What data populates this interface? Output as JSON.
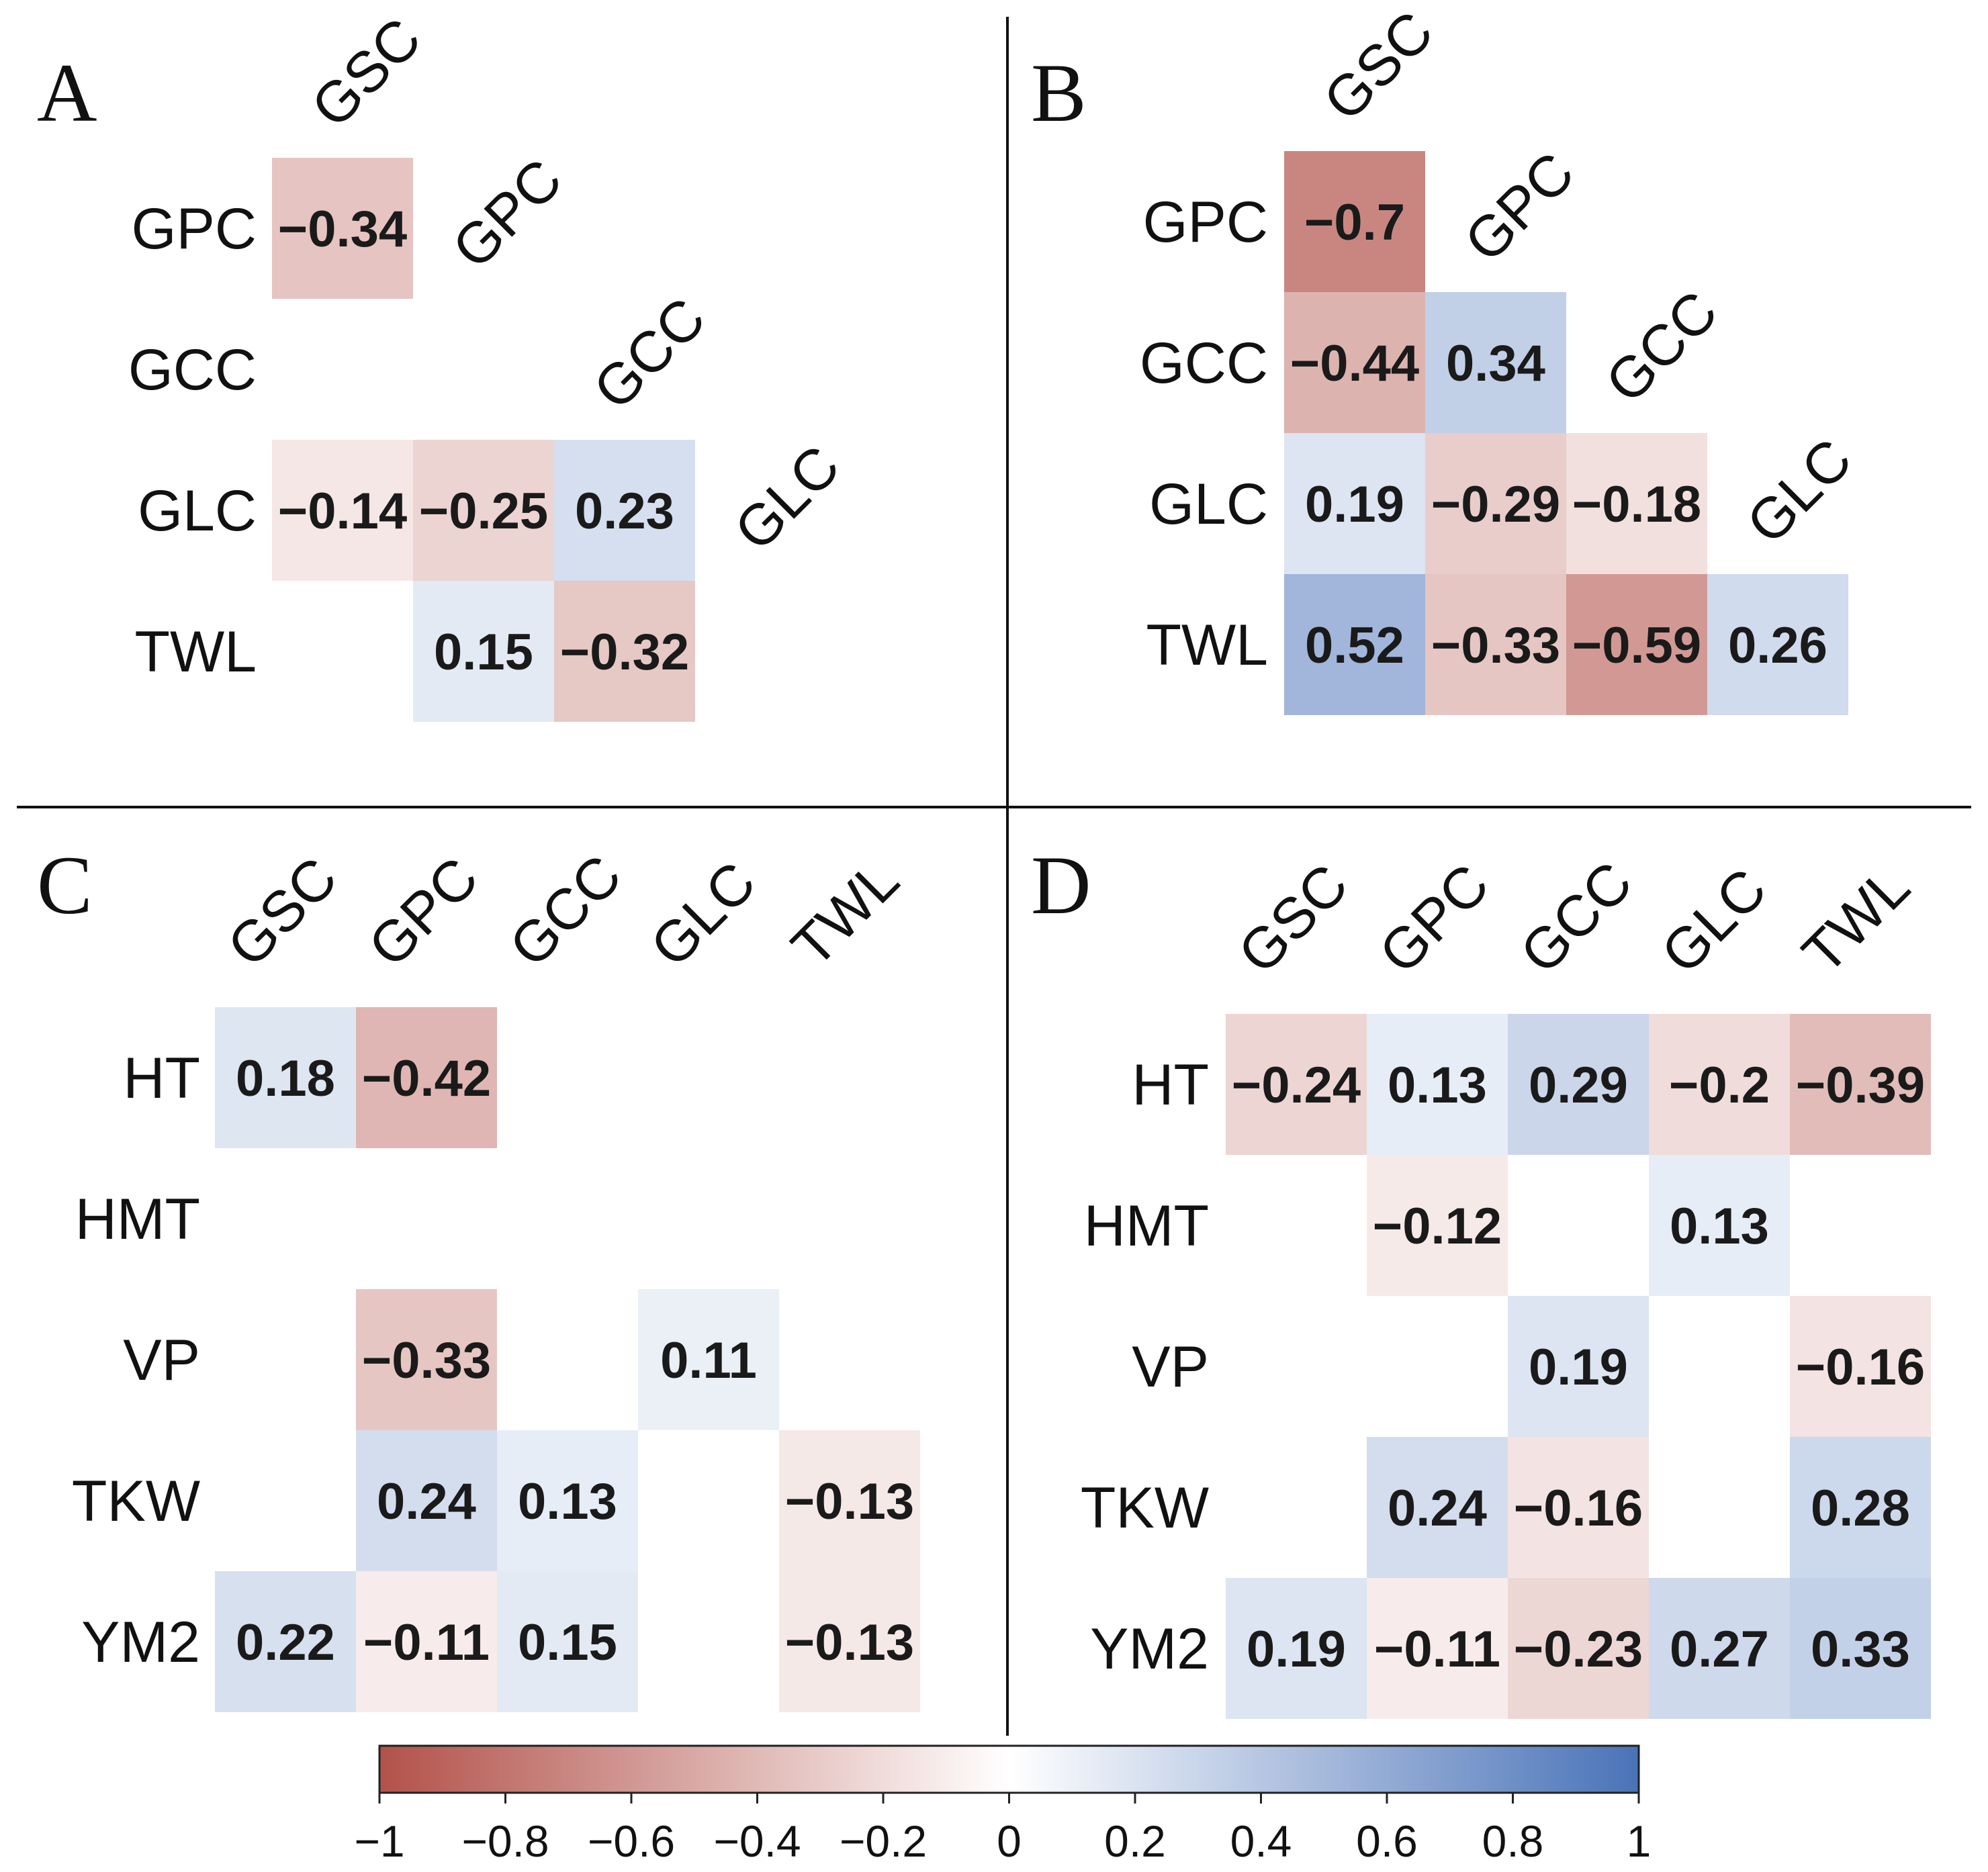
{
  "chart_data": {
    "type": "heatmap",
    "panels": [
      {
        "letter": "A",
        "layout": "triangle",
        "columns": [
          "GSC",
          "GPC",
          "GCC",
          "GLC"
        ],
        "rows": [
          "GPC",
          "GCC",
          "GLC",
          "TWL"
        ],
        "values": [
          [
            -0.34,
            null,
            null,
            null
          ],
          [
            null,
            null,
            null,
            null
          ],
          [
            -0.14,
            -0.25,
            0.23,
            null
          ],
          [
            null,
            0.15,
            -0.32,
            null
          ]
        ]
      },
      {
        "letter": "B",
        "layout": "triangle",
        "columns": [
          "GSC",
          "GPC",
          "GCC",
          "GLC"
        ],
        "rows": [
          "GPC",
          "GCC",
          "GLC",
          "TWL"
        ],
        "values": [
          [
            -0.7,
            null,
            null,
            null
          ],
          [
            -0.44,
            0.34,
            null,
            null
          ],
          [
            0.19,
            -0.29,
            -0.18,
            null
          ],
          [
            0.52,
            -0.33,
            -0.59,
            0.26
          ]
        ]
      },
      {
        "letter": "C",
        "layout": "full",
        "columns": [
          "GSC",
          "GPC",
          "GCC",
          "GLC",
          "TWL"
        ],
        "rows": [
          "HT",
          "HMT",
          "VP",
          "TKW",
          "YM2"
        ],
        "values": [
          [
            0.18,
            -0.42,
            null,
            null,
            null
          ],
          [
            null,
            null,
            null,
            null,
            null
          ],
          [
            null,
            -0.33,
            null,
            0.11,
            null
          ],
          [
            null,
            0.24,
            0.13,
            null,
            -0.13
          ],
          [
            0.22,
            -0.11,
            0.15,
            null,
            -0.13
          ]
        ]
      },
      {
        "letter": "D",
        "layout": "full",
        "columns": [
          "GSC",
          "GPC",
          "GCC",
          "GLC",
          "TWL"
        ],
        "rows": [
          "HT",
          "HMT",
          "VP",
          "TKW",
          "YM2"
        ],
        "values": [
          [
            -0.24,
            0.13,
            0.29,
            -0.2,
            -0.39
          ],
          [
            null,
            -0.12,
            null,
            0.13,
            null
          ],
          [
            null,
            null,
            0.19,
            null,
            -0.16
          ],
          [
            null,
            0.24,
            -0.16,
            null,
            0.28
          ],
          [
            0.19,
            -0.11,
            -0.23,
            0.27,
            0.33
          ]
        ]
      }
    ],
    "colorbar": {
      "range": [
        -1,
        1
      ],
      "ticks": [
        "−1",
        "−0.8",
        "−0.6",
        "−0.4",
        "−0.2",
        "0",
        "0.2",
        "0.4",
        "0.6",
        "0.8",
        "1"
      ],
      "colors": {
        "negative": "#b2524a",
        "zero": "#ffffff",
        "positive": "#4a73b8"
      }
    }
  }
}
